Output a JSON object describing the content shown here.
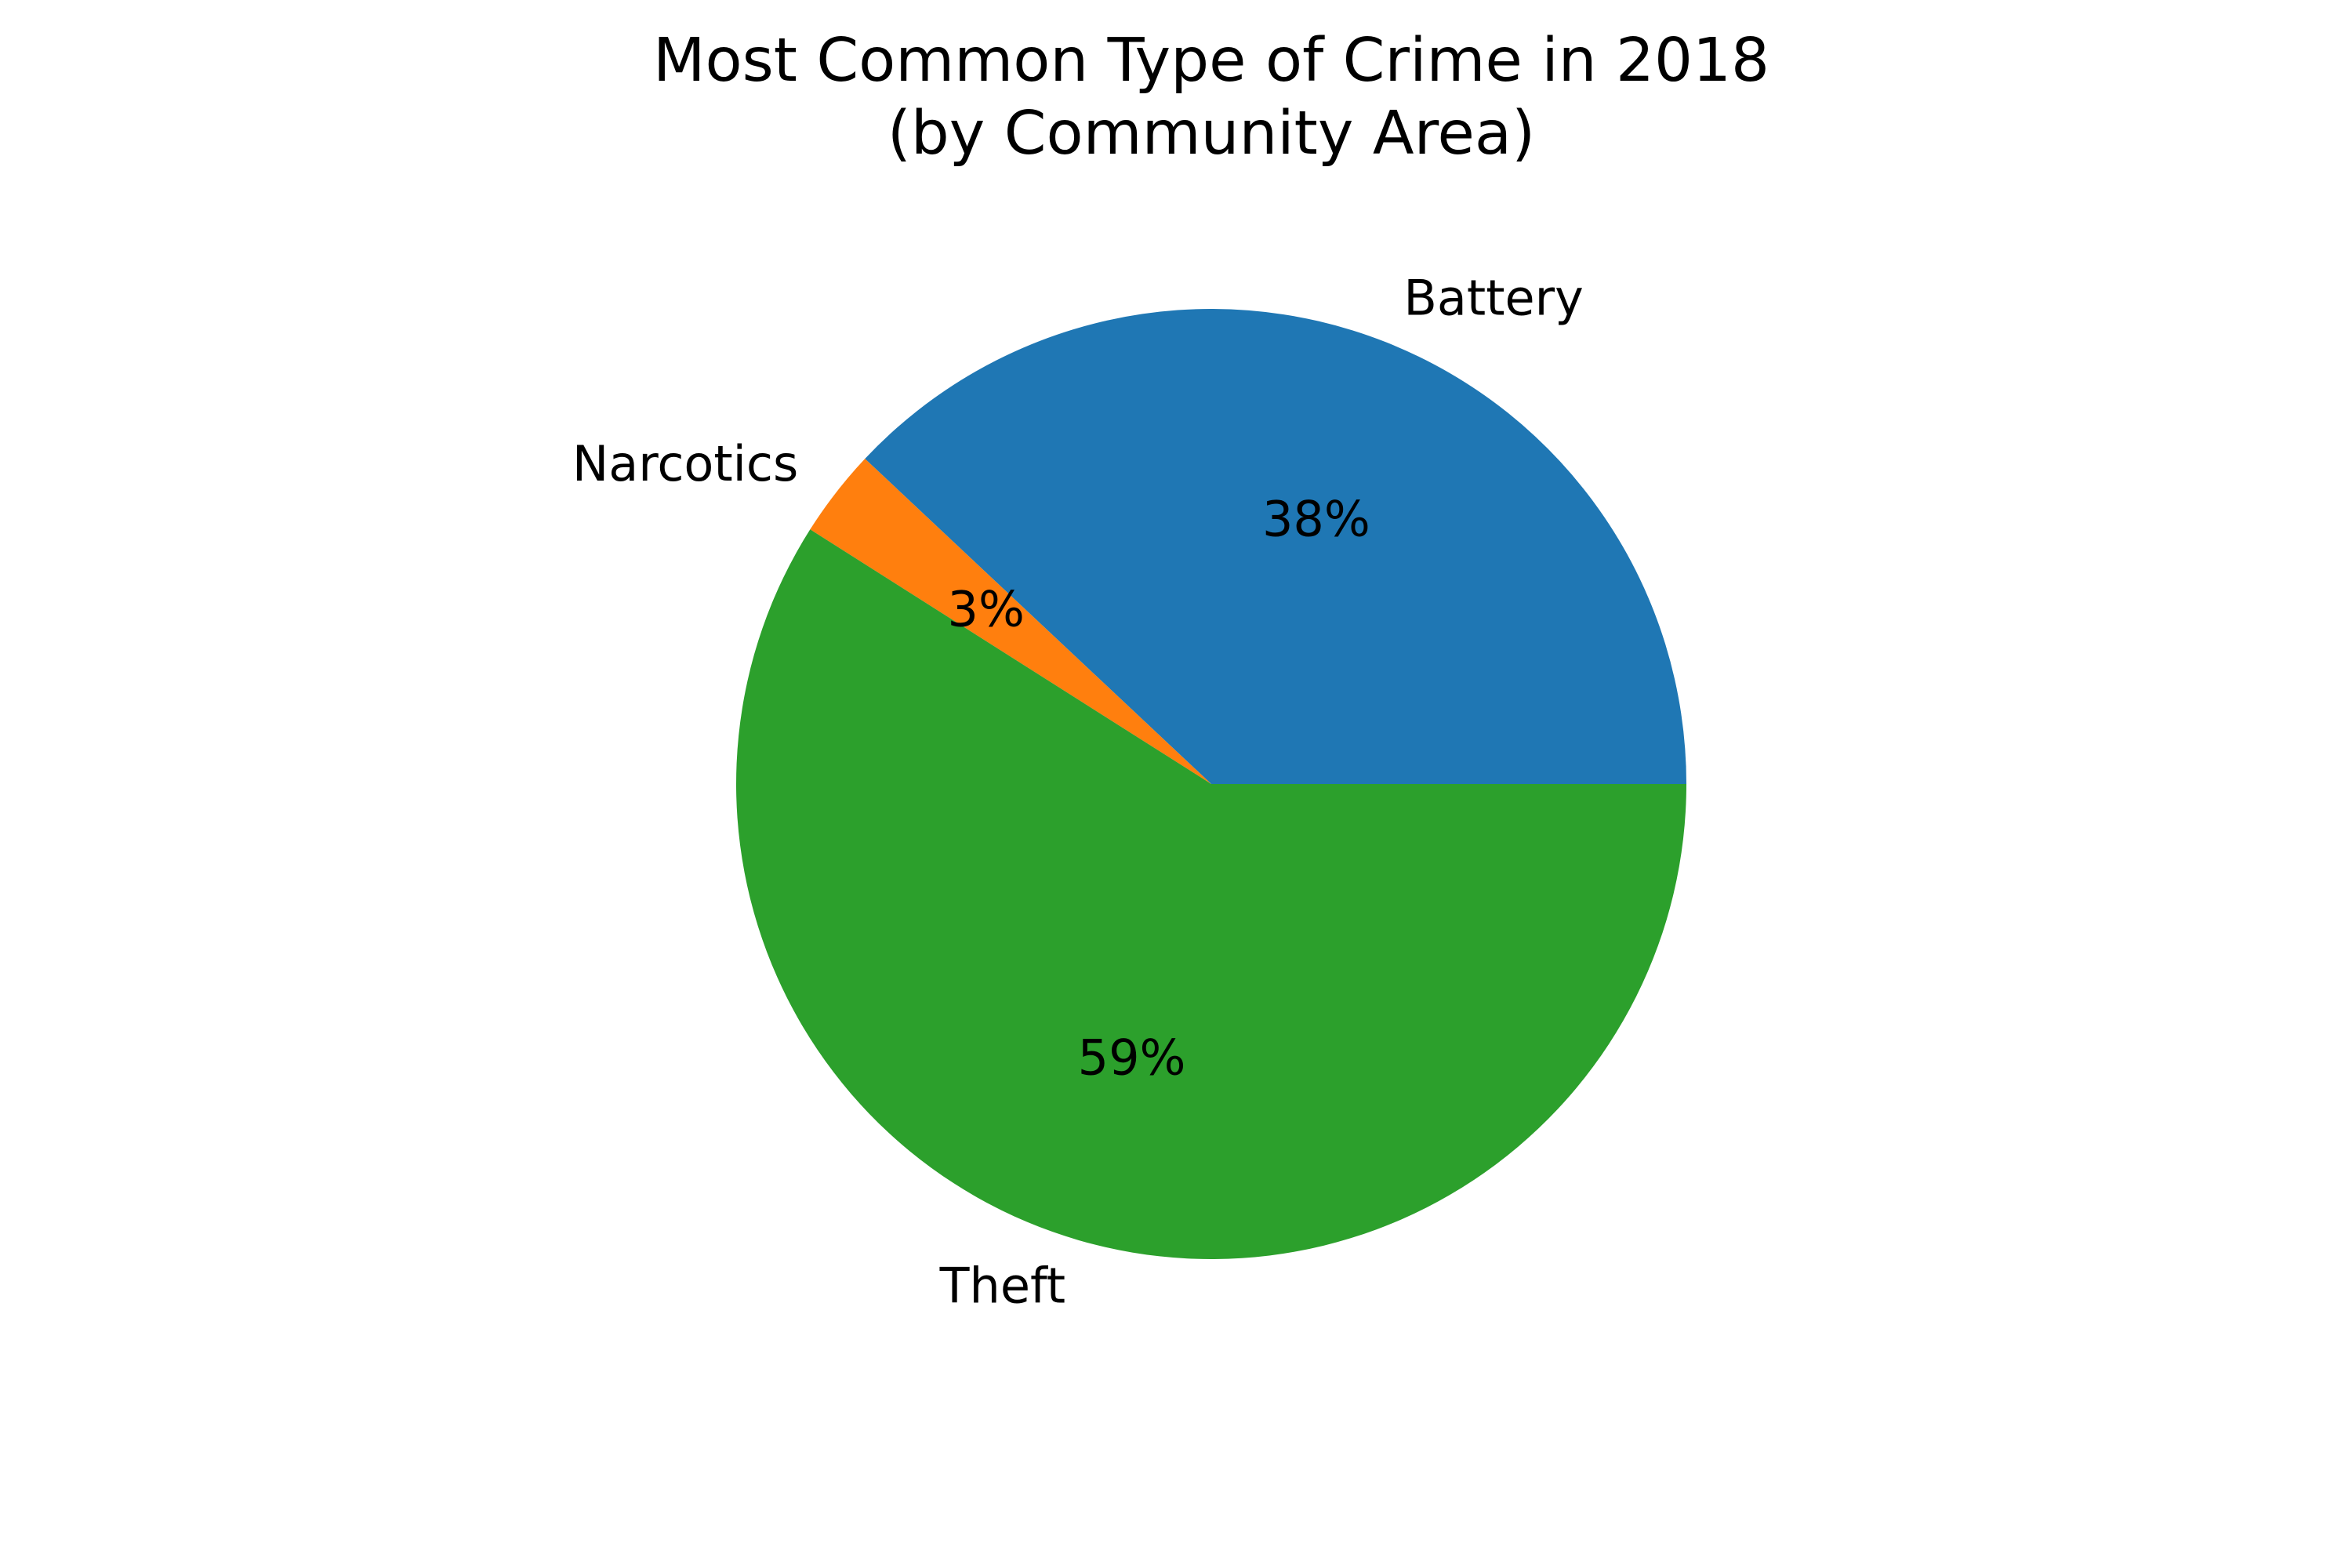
{
  "chart_data": {
    "type": "pie",
    "title": [
      "Most Common Type of Crime in 2018",
      "(by Community Area)"
    ],
    "start_angle_deg": 0,
    "direction": "counterclockwise",
    "slices": [
      {
        "label": "Battery",
        "value": 38,
        "percent_label": "38%",
        "color": "#1f77b4"
      },
      {
        "label": "Narcotics",
        "value": 3,
        "percent_label": "3%",
        "color": "#ff7f0e"
      },
      {
        "label": "Theft",
        "value": 59,
        "percent_label": "59%",
        "color": "#2ca02c"
      }
    ]
  }
}
